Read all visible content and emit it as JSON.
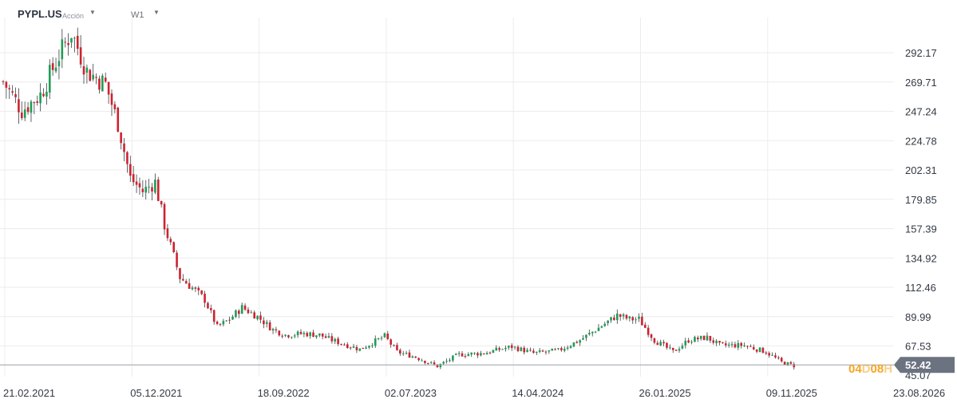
{
  "header": {
    "symbol": "PYPL.US",
    "symbol_type": "Acción",
    "interval": "W1"
  },
  "countdown": {
    "days": "04",
    "days_unit": "D",
    "hours": "08",
    "hours_unit": "H"
  },
  "colors": {
    "up": "#1f9d55",
    "down": "#d0212e",
    "grid": "#ececec",
    "price_line": "#9aa0a6",
    "price_label_bg": "#6b7280",
    "countdown": "#f5a623"
  },
  "chart_data": {
    "type": "candlestick",
    "symbol": "PYPL.US",
    "timeframe": "W1",
    "y_ticks": [
      "292.17",
      "269.71",
      "247.24",
      "224.78",
      "202.31",
      "179.85",
      "157.39",
      "134.92",
      "112.46",
      "89.99",
      "67.53",
      "45.07"
    ],
    "ylim": [
      44.0,
      313.0
    ],
    "x_ticks": [
      "21.02.2021",
      "05.12.2021",
      "18.09.2022",
      "02.07.2023",
      "14.04.2024",
      "26.01.2025",
      "09.11.2025",
      "23.08.2026"
    ],
    "last_price": "52.42",
    "grid": true,
    "weekly_close_path": [
      {
        "date": "2021-02-21",
        "close": 270
      },
      {
        "date": "2021-04-04",
        "close": 248
      },
      {
        "date": "2021-05-16",
        "close": 260
      },
      {
        "date": "2021-06-27",
        "close": 290
      },
      {
        "date": "2021-07-25",
        "close": 308
      },
      {
        "date": "2021-08-29",
        "close": 278
      },
      {
        "date": "2021-10-10",
        "close": 268
      },
      {
        "date": "2021-11-07",
        "close": 238
      },
      {
        "date": "2021-12-05",
        "close": 196
      },
      {
        "date": "2022-01-02",
        "close": 186
      },
      {
        "date": "2022-01-30",
        "close": 193
      },
      {
        "date": "2022-02-20",
        "close": 160
      },
      {
        "date": "2022-03-27",
        "close": 120
      },
      {
        "date": "2022-04-24",
        "close": 112
      },
      {
        "date": "2022-05-22",
        "close": 103
      },
      {
        "date": "2022-06-19",
        "close": 82
      },
      {
        "date": "2022-07-17",
        "close": 88
      },
      {
        "date": "2022-08-14",
        "close": 97
      },
      {
        "date": "2022-09-18",
        "close": 90
      },
      {
        "date": "2022-10-23",
        "close": 80
      },
      {
        "date": "2022-11-20",
        "close": 76
      },
      {
        "date": "2023-01-01",
        "close": 77
      },
      {
        "date": "2023-02-05",
        "close": 76
      },
      {
        "date": "2023-03-05",
        "close": 72
      },
      {
        "date": "2023-05-07",
        "close": 65
      },
      {
        "date": "2023-07-02",
        "close": 75
      },
      {
        "date": "2023-07-30",
        "close": 63
      },
      {
        "date": "2023-09-10",
        "close": 59
      },
      {
        "date": "2023-10-29",
        "close": 52
      },
      {
        "date": "2023-12-17",
        "close": 61
      },
      {
        "date": "2024-02-11",
        "close": 62
      },
      {
        "date": "2024-03-31",
        "close": 66
      },
      {
        "date": "2024-04-14",
        "close": 67
      },
      {
        "date": "2024-06-02",
        "close": 62
      },
      {
        "date": "2024-07-28",
        "close": 64
      },
      {
        "date": "2024-09-15",
        "close": 72
      },
      {
        "date": "2024-11-03",
        "close": 83
      },
      {
        "date": "2024-12-08",
        "close": 91
      },
      {
        "date": "2025-01-05",
        "close": 88
      },
      {
        "date": "2025-01-26",
        "close": 88
      },
      {
        "date": "2025-03-02",
        "close": 72
      },
      {
        "date": "2025-04-13",
        "close": 63
      },
      {
        "date": "2025-05-18",
        "close": 72
      },
      {
        "date": "2025-06-29",
        "close": 74
      },
      {
        "date": "2025-07-27",
        "close": 68
      },
      {
        "date": "2025-09-21",
        "close": 68
      },
      {
        "date": "2025-11-09",
        "close": 63
      },
      {
        "date": "2025-12-14",
        "close": 55
      },
      {
        "date": "2026-01-11",
        "close": 52.42
      }
    ]
  }
}
